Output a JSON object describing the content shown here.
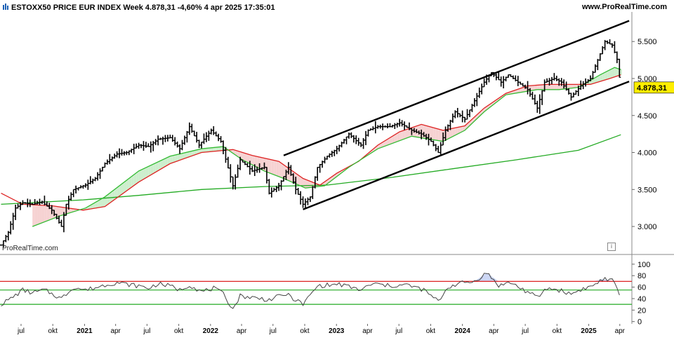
{
  "header": {
    "title": "ESTOXX50 PRICE EUR INDEX Week 4.878,31 -4,60% 4 apr 2025 17:35:01",
    "source": "www.ProRealTime.com"
  },
  "watermark": "ProRealTime.com",
  "colors": {
    "price": "#000000",
    "ma_red": "#dd2222",
    "ma_green_mid": "#33bb33",
    "ma_green_long": "#22aa22",
    "fill_green": "#cdeecd",
    "fill_red": "#f6d2d2",
    "last_price_bg": "#ffee00",
    "rsi_line": "#444444",
    "rsi_over": "#ccd6f4",
    "osc_red": "#dd2222",
    "osc_green": "#22aa22"
  },
  "icons": [
    "chart-bars-icon",
    "info-icon"
  ],
  "chart_data": [
    {
      "type": "line",
      "name": "price",
      "last_price_label": "4.878,31",
      "y_ticks": [
        "5.500",
        "5.000",
        "4.500",
        "4.000",
        "3.500",
        "3.000"
      ],
      "y_tick_values": [
        5500,
        5000,
        4500,
        4000,
        3500,
        3000
      ],
      "ylim": [
        2650,
        5900
      ],
      "x_labels": [
        "jul",
        "okt",
        "2021",
        "apr",
        "jul",
        "okt",
        "2022",
        "apr",
        "jul",
        "okt",
        "2023",
        "apr",
        "jul",
        "okt",
        "2024",
        "apr",
        "jul",
        "okt",
        "2025",
        "apr"
      ],
      "x_label_dates": [
        "2020-07-01",
        "2020-10-01",
        "2021-01-01",
        "2021-04-01",
        "2021-07-01",
        "2021-10-01",
        "2022-01-01",
        "2022-04-01",
        "2022-07-01",
        "2022-10-01",
        "2023-01-01",
        "2023-04-01",
        "2023-07-01",
        "2023-10-01",
        "2024-01-01",
        "2024-04-01",
        "2024-07-01",
        "2024-10-01",
        "2025-01-01",
        "2025-04-01"
      ],
      "xlim": [
        "2020-05-01",
        "2025-05-06"
      ],
      "close_points": [
        [
          "2020-05-04",
          2750
        ],
        [
          "2020-05-25",
          2920
        ],
        [
          "2020-06-15",
          3250
        ],
        [
          "2020-07-06",
          3320
        ],
        [
          "2020-08-03",
          3300
        ],
        [
          "2020-08-31",
          3330
        ],
        [
          "2020-09-28",
          3220
        ],
        [
          "2020-10-26",
          3000
        ],
        [
          "2020-11-09",
          3300
        ],
        [
          "2020-11-30",
          3500
        ],
        [
          "2021-01-04",
          3560
        ],
        [
          "2021-02-01",
          3650
        ],
        [
          "2021-03-01",
          3850
        ],
        [
          "2021-04-05",
          3980
        ],
        [
          "2021-05-03",
          4000
        ],
        [
          "2021-06-07",
          4100
        ],
        [
          "2021-07-05",
          4080
        ],
        [
          "2021-08-02",
          4180
        ],
        [
          "2021-09-06",
          4200
        ],
        [
          "2021-10-04",
          4050
        ],
        [
          "2021-11-01",
          4350
        ],
        [
          "2021-11-29",
          4100
        ],
        [
          "2022-01-03",
          4300
        ],
        [
          "2022-01-31",
          4150
        ],
        [
          "2022-03-07",
          3550
        ],
        [
          "2022-03-28",
          3900
        ],
        [
          "2022-05-02",
          3750
        ],
        [
          "2022-06-06",
          3800
        ],
        [
          "2022-06-20",
          3450
        ],
        [
          "2022-07-18",
          3550
        ],
        [
          "2022-08-15",
          3800
        ],
        [
          "2022-09-05",
          3500
        ],
        [
          "2022-09-26",
          3300
        ],
        [
          "2022-10-17",
          3400
        ],
        [
          "2022-11-07",
          3800
        ],
        [
          "2022-12-05",
          3950
        ],
        [
          "2023-01-02",
          4050
        ],
        [
          "2023-02-06",
          4250
        ],
        [
          "2023-03-13",
          4100
        ],
        [
          "2023-04-03",
          4300
        ],
        [
          "2023-05-01",
          4350
        ],
        [
          "2023-06-05",
          4350
        ],
        [
          "2023-07-03",
          4400
        ],
        [
          "2023-08-07",
          4300
        ],
        [
          "2023-09-04",
          4250
        ],
        [
          "2023-10-02",
          4150
        ],
        [
          "2023-10-23",
          4000
        ],
        [
          "2023-11-13",
          4300
        ],
        [
          "2023-12-11",
          4550
        ],
        [
          "2024-01-08",
          4450
        ],
        [
          "2024-02-05",
          4700
        ],
        [
          "2024-03-04",
          4950
        ],
        [
          "2024-03-25",
          5080
        ],
        [
          "2024-04-22",
          4950
        ],
        [
          "2024-05-13",
          5050
        ],
        [
          "2024-06-10",
          4950
        ],
        [
          "2024-07-08",
          4850
        ],
        [
          "2024-08-05",
          4600
        ],
        [
          "2024-08-26",
          4950
        ],
        [
          "2024-09-23",
          5000
        ],
        [
          "2024-10-14",
          4950
        ],
        [
          "2024-11-11",
          4750
        ],
        [
          "2024-12-09",
          4900
        ],
        [
          "2025-01-06",
          5000
        ],
        [
          "2025-01-27",
          5250
        ],
        [
          "2025-02-17",
          5500
        ],
        [
          "2025-03-10",
          5450
        ],
        [
          "2025-03-24",
          5260
        ],
        [
          "2025-04-04",
          4878
        ]
      ],
      "ma_red_points": [
        [
          "2020-05-04",
          3450
        ],
        [
          "2020-07-06",
          3300
        ],
        [
          "2020-09-28",
          3280
        ],
        [
          "2020-12-28",
          3220
        ],
        [
          "2021-03-01",
          3270
        ],
        [
          "2021-06-07",
          3600
        ],
        [
          "2021-09-06",
          3850
        ],
        [
          "2021-12-06",
          4000
        ],
        [
          "2022-03-07",
          4040
        ],
        [
          "2022-05-02",
          3960
        ],
        [
          "2022-07-18",
          3880
        ],
        [
          "2022-09-26",
          3650
        ],
        [
          "2022-11-14",
          3560
        ],
        [
          "2023-01-02",
          3720
        ],
        [
          "2023-03-06",
          3880
        ],
        [
          "2023-05-01",
          4100
        ],
        [
          "2023-07-03",
          4280
        ],
        [
          "2023-09-04",
          4380
        ],
        [
          "2023-11-06",
          4300
        ],
        [
          "2024-01-08",
          4360
        ],
        [
          "2024-03-04",
          4600
        ],
        [
          "2024-05-06",
          4800
        ],
        [
          "2024-07-08",
          4900
        ],
        [
          "2024-09-02",
          4920
        ],
        [
          "2024-11-04",
          4920
        ],
        [
          "2025-01-06",
          4920
        ],
        [
          "2025-03-03",
          5000
        ],
        [
          "2025-04-04",
          5050
        ]
      ],
      "ma_green_mid_points": [
        [
          "2020-08-03",
          3000
        ],
        [
          "2020-10-26",
          3150
        ],
        [
          "2021-01-04",
          3250
        ],
        [
          "2021-03-01",
          3400
        ],
        [
          "2021-06-07",
          3750
        ],
        [
          "2021-09-06",
          3950
        ],
        [
          "2021-12-06",
          4050
        ],
        [
          "2022-02-07",
          4080
        ],
        [
          "2022-04-04",
          3900
        ],
        [
          "2022-06-06",
          3750
        ],
        [
          "2022-08-01",
          3650
        ],
        [
          "2022-10-03",
          3520
        ],
        [
          "2022-11-28",
          3550
        ],
        [
          "2023-02-06",
          3800
        ],
        [
          "2023-05-01",
          4050
        ],
        [
          "2023-08-07",
          4220
        ],
        [
          "2023-11-06",
          4150
        ],
        [
          "2024-01-08",
          4300
        ],
        [
          "2024-03-04",
          4550
        ],
        [
          "2024-05-06",
          4780
        ],
        [
          "2024-08-05",
          4850
        ],
        [
          "2024-10-07",
          4850
        ],
        [
          "2024-12-02",
          4880
        ],
        [
          "2025-02-03",
          5050
        ],
        [
          "2025-03-17",
          5150
        ],
        [
          "2025-04-04",
          5120
        ]
      ],
      "ma_green_long_points": [
        [
          "2020-05-04",
          3300
        ],
        [
          "2020-12-28",
          3360
        ],
        [
          "2021-06-07",
          3420
        ],
        [
          "2021-12-06",
          3500
        ],
        [
          "2022-06-06",
          3540
        ],
        [
          "2022-12-05",
          3560
        ],
        [
          "2023-06-05",
          3660
        ],
        [
          "2023-12-04",
          3780
        ],
        [
          "2024-06-03",
          3900
        ],
        [
          "2024-12-02",
          4030
        ],
        [
          "2025-04-04",
          4240
        ]
      ],
      "channel_upper": [
        [
          "2022-08-01",
          3960
        ],
        [
          "2025-04-28",
          5780
        ]
      ],
      "channel_lower": [
        [
          "2022-09-26",
          3230
        ],
        [
          "2025-04-28",
          4960
        ]
      ]
    },
    {
      "type": "line",
      "name": "oscillator",
      "ylim": [
        -4,
        112
      ],
      "y_ticks": [
        "100",
        "80",
        "60",
        "40",
        "20",
        "0"
      ],
      "y_tick_values": [
        100,
        80,
        60,
        40,
        20,
        0
      ],
      "levels": [
        70,
        55,
        30
      ],
      "points": [
        [
          "2020-05-04",
          30
        ],
        [
          "2020-06-01",
          40
        ],
        [
          "2020-07-06",
          55
        ],
        [
          "2020-08-03",
          50
        ],
        [
          "2020-09-07",
          55
        ],
        [
          "2020-10-26",
          40
        ],
        [
          "2020-11-30",
          60
        ],
        [
          "2021-01-04",
          55
        ],
        [
          "2021-02-08",
          60
        ],
        [
          "2021-03-08",
          65
        ],
        [
          "2021-04-05",
          68
        ],
        [
          "2021-05-03",
          65
        ],
        [
          "2021-06-07",
          62
        ],
        [
          "2021-07-05",
          58
        ],
        [
          "2021-08-02",
          66
        ],
        [
          "2021-09-06",
          62
        ],
        [
          "2021-10-04",
          55
        ],
        [
          "2021-11-01",
          64
        ],
        [
          "2021-12-06",
          52
        ],
        [
          "2022-01-10",
          58
        ],
        [
          "2022-02-07",
          48
        ],
        [
          "2022-03-07",
          22
        ],
        [
          "2022-03-28",
          45
        ],
        [
          "2022-05-02",
          42
        ],
        [
          "2022-06-20",
          38
        ],
        [
          "2022-08-08",
          48
        ],
        [
          "2022-09-26",
          30
        ],
        [
          "2022-11-07",
          62
        ],
        [
          "2023-01-09",
          65
        ],
        [
          "2023-03-13",
          55
        ],
        [
          "2023-04-17",
          66
        ],
        [
          "2023-06-05",
          62
        ],
        [
          "2023-07-24",
          64
        ],
        [
          "2023-09-11",
          55
        ],
        [
          "2023-10-23",
          35
        ],
        [
          "2023-11-20",
          60
        ],
        [
          "2023-12-18",
          66
        ],
        [
          "2024-02-05",
          70
        ],
        [
          "2024-03-11",
          85
        ],
        [
          "2024-04-15",
          63
        ],
        [
          "2024-05-20",
          68
        ],
        [
          "2024-06-24",
          56
        ],
        [
          "2024-08-05",
          42
        ],
        [
          "2024-09-02",
          58
        ],
        [
          "2024-10-07",
          55
        ],
        [
          "2024-11-11",
          48
        ],
        [
          "2024-12-09",
          56
        ],
        [
          "2025-01-13",
          62
        ],
        [
          "2025-02-10",
          74
        ],
        [
          "2025-03-10",
          71
        ],
        [
          "2025-03-24",
          62
        ],
        [
          "2025-04-04",
          32
        ]
      ]
    }
  ]
}
